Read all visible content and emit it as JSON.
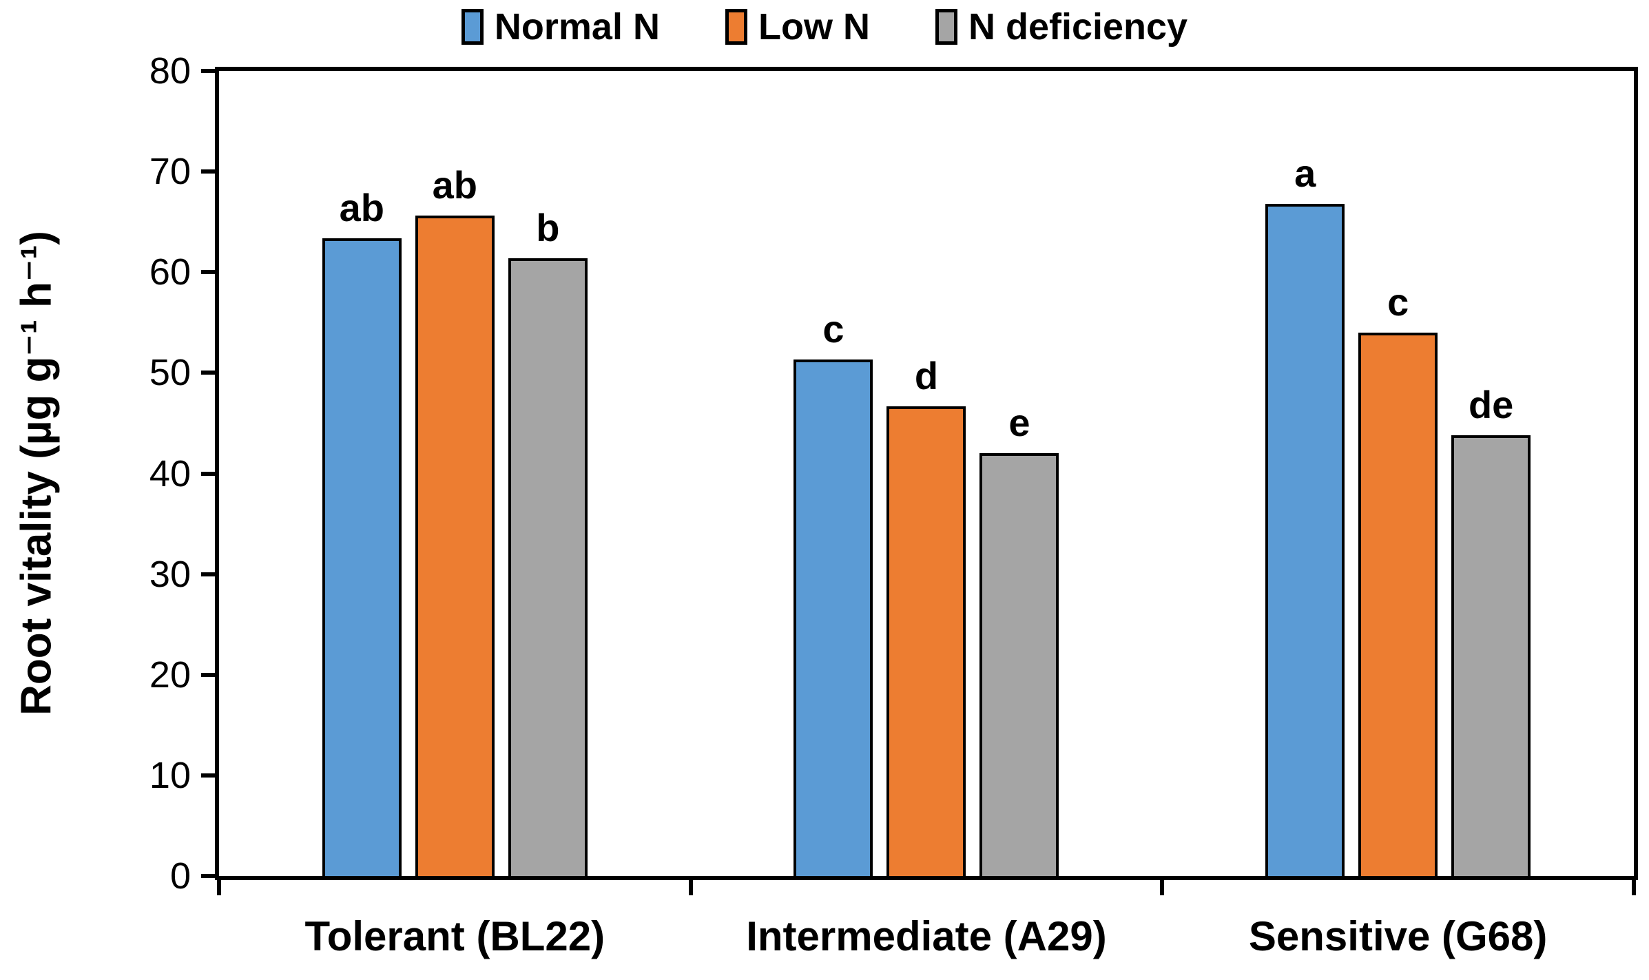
{
  "chart_data": {
    "type": "bar",
    "title": "",
    "categories": [
      "Tolerant (BL22)",
      "Intermediate (A29)",
      "Sensitive (G68)"
    ],
    "series": [
      {
        "name": "Normal N",
        "color": "#5B9BD5",
        "values": [
          63.4,
          51.3,
          66.8
        ]
      },
      {
        "name": "Low N",
        "color": "#ED7D31",
        "values": [
          65.6,
          46.7,
          54.0
        ]
      },
      {
        "name": "N deficiency",
        "color": "#A5A5A5",
        "values": [
          61.4,
          42.0,
          43.8
        ]
      }
    ],
    "sig_letters": [
      [
        "ab",
        "ab",
        "b"
      ],
      [
        "c",
        "d",
        "e"
      ],
      [
        "a",
        "c",
        "de"
      ]
    ],
    "ylabel": "Root vitality (µg g⁻¹ h⁻¹)",
    "xlabel": "",
    "ylim": [
      0,
      80
    ],
    "ytick_step": 10,
    "yticks": [
      0,
      10,
      20,
      30,
      40,
      50,
      60,
      70,
      80
    ],
    "legend": {
      "position": "top",
      "entries": [
        "Normal N",
        "Low N",
        "N deficiency"
      ]
    },
    "grid": false,
    "axis_color": "#000000",
    "bar_border_color": "#000000",
    "background": "#FFFFFF"
  }
}
